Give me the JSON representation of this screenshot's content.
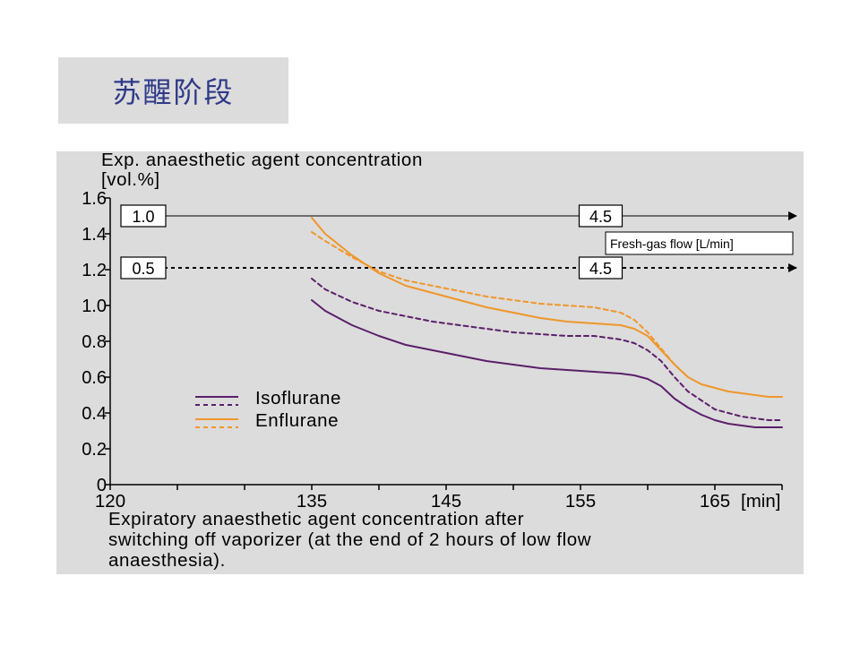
{
  "slide": {
    "title": "苏醒阶段"
  },
  "chart_data": {
    "type": "line",
    "title": "",
    "ylabel_line1": "Exp. anaesthetic agent concentration",
    "ylabel_line2": "[vol.%]",
    "xlabel": "[min]",
    "xlim": [
      120,
      170
    ],
    "ylim": [
      0,
      1.6
    ],
    "x_ticks": [
      120,
      135,
      145,
      155,
      165
    ],
    "x_tick_labels": [
      "120",
      "135",
      "145",
      "155",
      "165"
    ],
    "y_ticks": [
      0,
      0.2,
      0.4,
      0.6,
      0.8,
      1.0,
      1.2,
      1.4,
      1.6
    ],
    "y_tick_labels": [
      "0",
      "0.2",
      "0.4",
      "0.6",
      "0.8",
      "1.0",
      "1.2",
      "1.4",
      "1.6"
    ],
    "grid": false,
    "legend": {
      "placement": "lower-left",
      "entries": [
        {
          "label": "Isoflurane",
          "color": "#5b1f6b"
        },
        {
          "label": "Enflurane",
          "color": "#f0962a"
        }
      ]
    },
    "flow_annotations": {
      "label": "Fresh-gas flow [L/min]",
      "lines": [
        {
          "y": 1.5,
          "style": "solid",
          "start_label": "1.0",
          "switch_label": "4.5",
          "switch_x": 156.5
        },
        {
          "y": 1.21,
          "style": "dashed",
          "start_label": "0.5",
          "switch_label": "4.5",
          "switch_x": 156.5
        }
      ]
    },
    "series": [
      {
        "agent": "Isoflurane",
        "style": "solid",
        "color": "#5b1f6b",
        "x": [
          135,
          136,
          138,
          140,
          142,
          144,
          146,
          148,
          150,
          152,
          154,
          156,
          158,
          159,
          160,
          161,
          162,
          163,
          164,
          165,
          166,
          167,
          168,
          169,
          170
        ],
        "y": [
          1.03,
          0.97,
          0.89,
          0.83,
          0.78,
          0.75,
          0.72,
          0.69,
          0.67,
          0.65,
          0.64,
          0.63,
          0.62,
          0.61,
          0.59,
          0.55,
          0.48,
          0.43,
          0.39,
          0.36,
          0.34,
          0.33,
          0.32,
          0.32,
          0.32
        ]
      },
      {
        "agent": "Isoflurane",
        "style": "dashed",
        "color": "#5b1f6b",
        "x": [
          135,
          136,
          138,
          140,
          142,
          144,
          146,
          148,
          150,
          152,
          154,
          156,
          158,
          159,
          160,
          161,
          162,
          163,
          164,
          165,
          166,
          167,
          168,
          169,
          170
        ],
        "y": [
          1.15,
          1.09,
          1.02,
          0.97,
          0.94,
          0.91,
          0.89,
          0.87,
          0.85,
          0.84,
          0.83,
          0.83,
          0.81,
          0.79,
          0.75,
          0.69,
          0.6,
          0.52,
          0.47,
          0.42,
          0.4,
          0.38,
          0.37,
          0.36,
          0.36
        ]
      },
      {
        "agent": "Enflurane",
        "style": "solid",
        "color": "#f0962a",
        "x": [
          135,
          136,
          138,
          140,
          142,
          144,
          146,
          148,
          150,
          152,
          154,
          156,
          158,
          159,
          160,
          161,
          162,
          163,
          164,
          165,
          166,
          167,
          168,
          169,
          170
        ],
        "y": [
          1.49,
          1.4,
          1.28,
          1.18,
          1.11,
          1.07,
          1.03,
          0.99,
          0.96,
          0.93,
          0.91,
          0.9,
          0.89,
          0.87,
          0.83,
          0.75,
          0.67,
          0.6,
          0.56,
          0.54,
          0.52,
          0.51,
          0.5,
          0.49,
          0.49
        ]
      },
      {
        "agent": "Enflurane",
        "style": "dashed",
        "color": "#f0962a",
        "x": [
          135,
          136,
          138,
          140,
          142,
          144,
          146,
          148,
          150,
          152,
          154,
          156,
          158,
          159,
          160,
          161,
          162,
          163
        ],
        "y": [
          1.41,
          1.36,
          1.27,
          1.19,
          1.14,
          1.11,
          1.08,
          1.05,
          1.03,
          1.01,
          1.0,
          0.99,
          0.96,
          0.92,
          0.85,
          0.76,
          0.67,
          0.6
        ]
      }
    ],
    "caption_lines": [
      "Expiratory anaesthetic agent concentration after",
      "switching off vaporizer (at the end of 2 hours of low flow",
      "anaesthesia)."
    ]
  }
}
